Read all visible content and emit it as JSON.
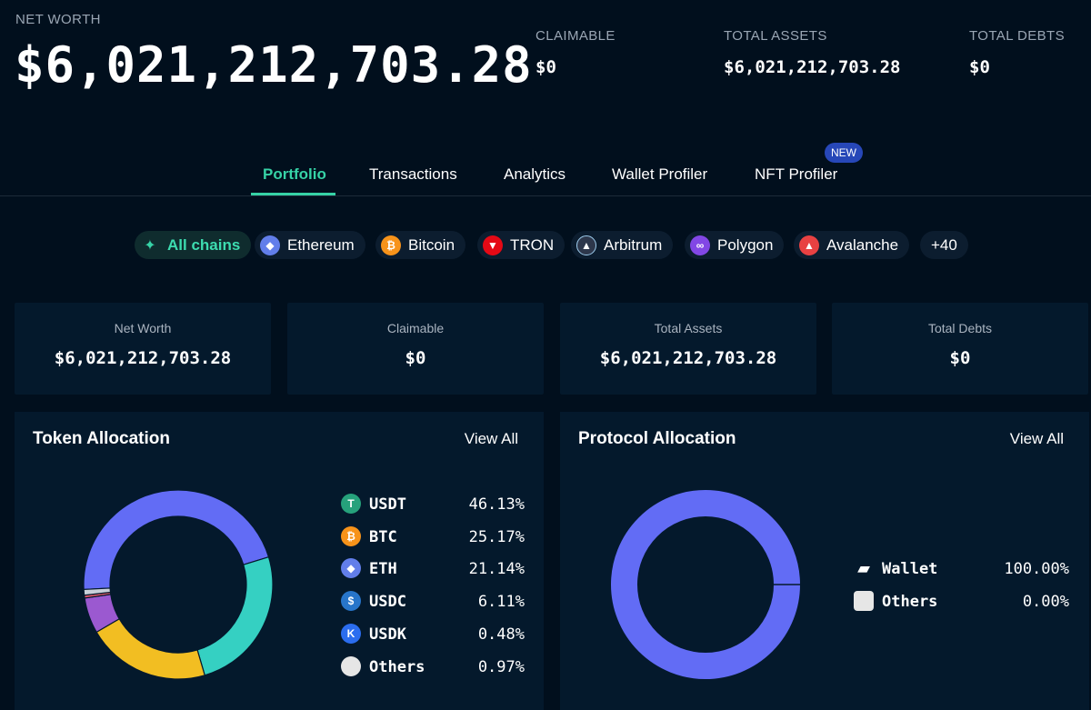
{
  "header": {
    "net_worth_label": "NET WORTH",
    "net_worth_value": "$6,021,212,703.28",
    "claimable_label": "CLAIMABLE",
    "claimable_value": "$0",
    "total_assets_label": "TOTAL ASSETS",
    "total_assets_value": "$6,021,212,703.28",
    "total_debts_label": "TOTAL DEBTS",
    "total_debts_value": "$0"
  },
  "tabs": [
    {
      "label": "Portfolio",
      "active": true
    },
    {
      "label": "Transactions"
    },
    {
      "label": "Analytics"
    },
    {
      "label": "Wallet Profiler"
    },
    {
      "label": "NFT Profiler",
      "badge": "NEW"
    }
  ],
  "chains": [
    {
      "label": "All chains",
      "icon": "all-chains-icon",
      "color": "#36d2a6"
    },
    {
      "label": "Ethereum",
      "icon": "ethereum-icon",
      "color": "#627eea"
    },
    {
      "label": "Bitcoin",
      "icon": "bitcoin-icon",
      "color": "#f7931a"
    },
    {
      "label": "TRON",
      "icon": "tron-icon",
      "color": "#e50915"
    },
    {
      "label": "Arbitrum",
      "icon": "arbitrum-icon",
      "color": "#2d374b"
    },
    {
      "label": "Polygon",
      "icon": "polygon-icon",
      "color": "#8247e5"
    },
    {
      "label": "Avalanche",
      "icon": "avalanche-icon",
      "color": "#e84142"
    },
    {
      "label": "+40"
    }
  ],
  "cards": [
    {
      "label": "Net Worth",
      "value": "$6,021,212,703.28"
    },
    {
      "label": "Claimable",
      "value": "$0"
    },
    {
      "label": "Total Assets",
      "value": "$6,021,212,703.28"
    },
    {
      "label": "Total Debts",
      "value": "$0"
    }
  ],
  "token_allocation": {
    "title": "Token Allocation",
    "view_all": "View All",
    "items": [
      {
        "name": "USDT",
        "pct": "46.13%",
        "icon": "usdt-icon",
        "color": "#26a17b"
      },
      {
        "name": "BTC",
        "pct": "25.17%",
        "icon": "btc-icon",
        "color": "#f7931a"
      },
      {
        "name": "ETH",
        "pct": "21.14%",
        "icon": "eth-icon",
        "color": "#627eea"
      },
      {
        "name": "USDC",
        "pct": "6.11%",
        "icon": "usdc-icon",
        "color": "#2775ca"
      },
      {
        "name": "USDK",
        "pct": "0.48%",
        "icon": "usdk-icon",
        "color": "#2b6def"
      },
      {
        "name": "Others",
        "pct": "0.97%",
        "icon": "others-icon",
        "color": "#e6e6e6"
      }
    ]
  },
  "protocol_allocation": {
    "title": "Protocol Allocation",
    "view_all": "View All",
    "items": [
      {
        "name": "Wallet",
        "pct": "100.00%",
        "icon": "wallet-icon",
        "color": "#ffffff"
      },
      {
        "name": "Others",
        "pct": "0.00%",
        "icon": "others-icon",
        "color": "#e6e6e6"
      }
    ]
  },
  "chart_data": [
    {
      "type": "pie",
      "categories": [
        "USDT",
        "BTC",
        "ETH",
        "USDC",
        "USDK",
        "Others"
      ],
      "values": [
        46.13,
        25.17,
        21.14,
        6.11,
        0.48,
        0.97
      ],
      "colors": [
        "#626cf5",
        "#35d0c2",
        "#f2be22",
        "#9b59d0",
        "#e85a6a",
        "#c9d1da"
      ]
    },
    {
      "type": "pie",
      "categories": [
        "Wallet",
        "Others"
      ],
      "values": [
        100.0,
        0.0
      ],
      "colors": [
        "#626cf5",
        "#e6e6e6"
      ]
    }
  ]
}
